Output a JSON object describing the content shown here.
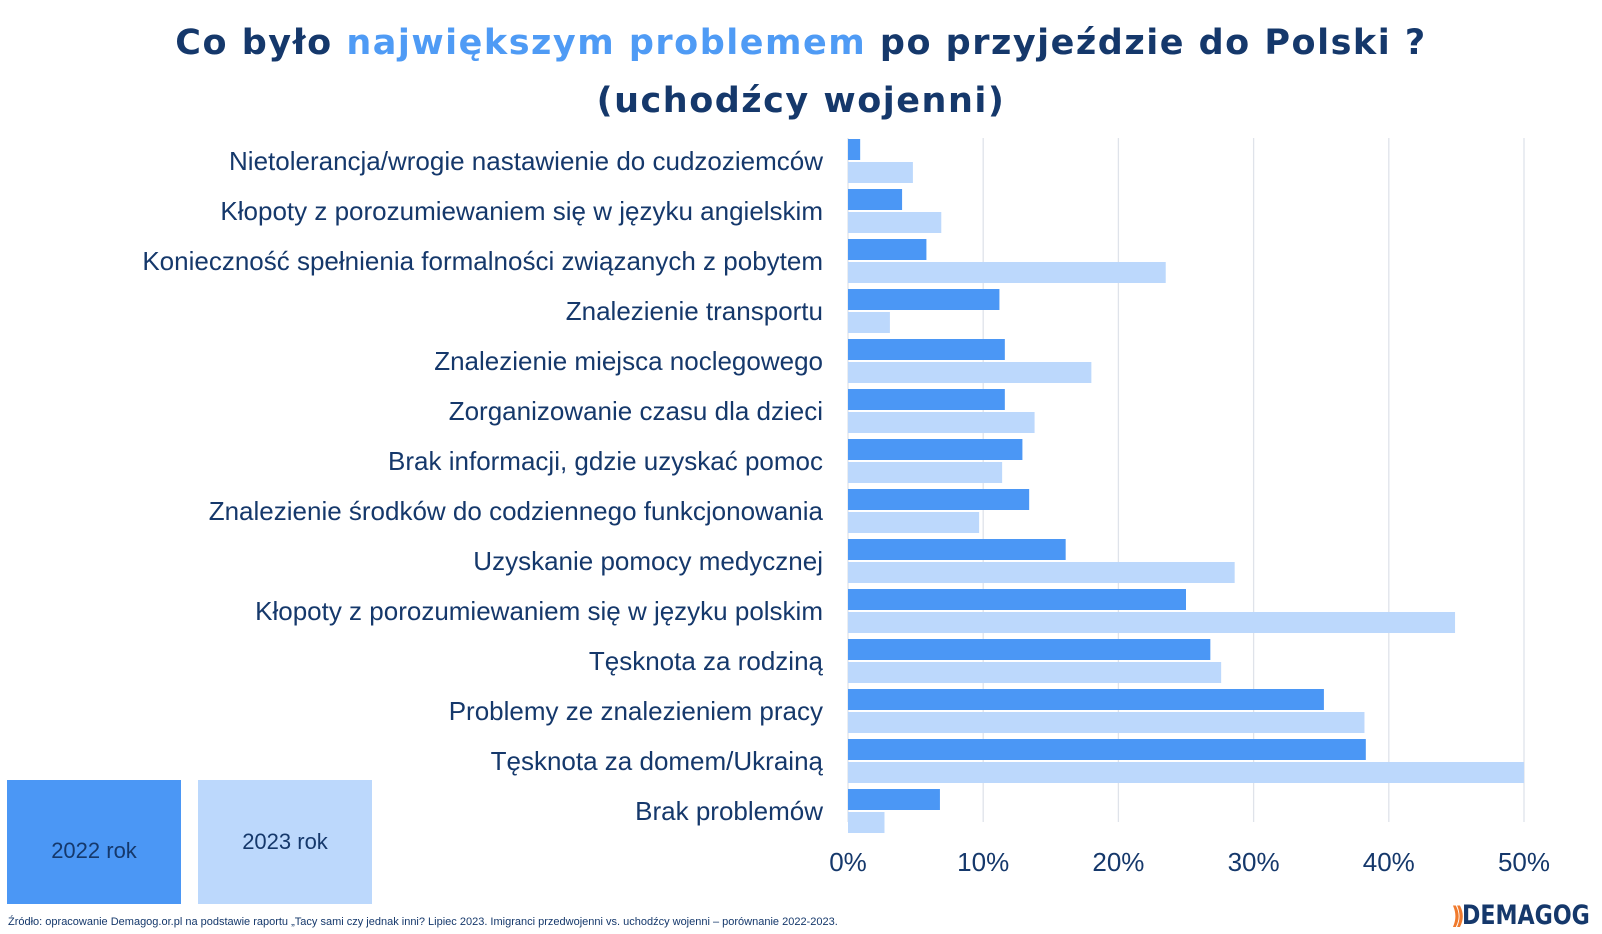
{
  "title": {
    "part1": "Co było ",
    "highlight": "największym problemem",
    "part2": " po przyjeździe do Polski ?",
    "line2": "(uchodźcy wojenni)"
  },
  "colors": {
    "series_2022": "#4b97f5",
    "series_2023": "#bcd8fc",
    "title_text": "#15386b",
    "title_highlight": "#4f9bf5",
    "gridline": "#dfe3ea",
    "logo_mark": "#f07a2d"
  },
  "legend": {
    "label_2022": "2022 rok",
    "label_2023": "2023 rok"
  },
  "source": "Źródło: opracowanie Demagog.or.pl na podstawie raportu „Tacy sami czy jednak inni? Lipiec 2023. Imigranci przedwojenni vs. uchodźcy wojenni – porównanie 2022-2023.",
  "logo": {
    "mark": "))",
    "text": "DEMAGOG"
  },
  "chart_data": {
    "type": "bar",
    "orientation": "horizontal",
    "title": "Co było największym problemem po przyjeździe do Polski ? (uchodźcy wojenni)",
    "xlabel": "",
    "ylabel": "",
    "xlim": [
      0,
      50
    ],
    "ticks": [
      0,
      10,
      20,
      30,
      40,
      50
    ],
    "tick_labels": [
      "0%",
      "10%",
      "20%",
      "30%",
      "40%",
      "50%"
    ],
    "grid": true,
    "legend_position": "bottom-left",
    "categories": [
      "Nietolerancja/wrogie nastawienie do cudzoziemców",
      "Kłopoty z porozumiewaniem się w języku angielskim",
      "Konieczność spełnienia formalności związanych z pobytem",
      "Znalezienie transportu",
      "Znalezienie miejsca noclegowego",
      "Zorganizowanie czasu dla dzieci",
      "Brak informacji, gdzie uzyskać pomoc",
      "Znalezienie środków do codziennego funkcjonowania",
      "Uzyskanie pomocy medycznej",
      "Kłopoty z porozumiewaniem się w języku polskim",
      "Tęsknota za rodziną",
      "Problemy ze znalezieniem pracy",
      "Tęsknota za domem/Ukrainą",
      "Brak problemów"
    ],
    "series": [
      {
        "name": "2022 rok",
        "values": [
          0.9,
          4.0,
          5.8,
          11.2,
          11.6,
          11.6,
          12.9,
          13.4,
          16.1,
          25.0,
          26.8,
          35.2,
          38.3,
          6.8
        ]
      },
      {
        "name": "2023 rok",
        "values": [
          4.8,
          6.9,
          23.5,
          3.1,
          18.0,
          13.8,
          11.4,
          9.7,
          28.6,
          44.9,
          27.6,
          38.2,
          50.0,
          2.7
        ]
      }
    ]
  }
}
